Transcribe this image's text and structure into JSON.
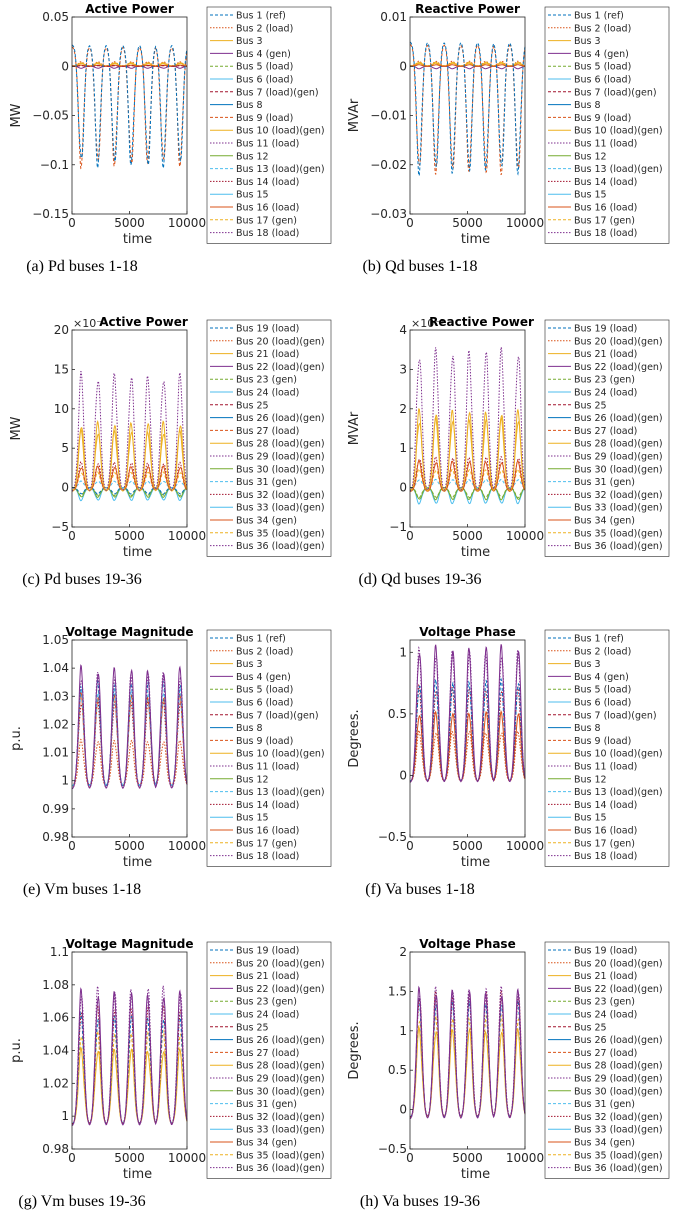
{
  "legend_sets": {
    "buses_1_18": [
      "Bus 1 (ref)",
      "Bus 2 (load)",
      "Bus 3",
      "Bus 4 (gen)",
      "Bus 5 (load)",
      "Bus 6 (load)",
      "Bus 7 (load)(gen)",
      "Bus 8",
      "Bus 9 (load)",
      "Bus 10 (load)(gen)",
      "Bus 11 (load)",
      "Bus 12",
      "Bus 13 (load)(gen)",
      "Bus 14 (load)",
      "Bus 15",
      "Bus 16 (load)",
      "Bus 17 (gen)",
      "Bus 18 (load)"
    ],
    "buses_19_36": [
      "Bus 19 (load)",
      "Bus 20 (load)(gen)",
      "Bus 21 (load)",
      "Bus 22 (load)(gen)",
      "Bus 23 (gen)",
      "Bus 24 (load)",
      "Bus 25",
      "Bus 26 (load)(gen)",
      "Bus 27 (load)",
      "Bus 28 (load)(gen)",
      "Bus 29 (load)(gen)",
      "Bus 30 (load)(gen)",
      "Bus 31 (gen)",
      "Bus 32 (load)(gen)",
      "Bus 33 (load)(gen)",
      "Bus 34 (gen)",
      "Bus 35 (load)(gen)",
      "Bus 36 (load)(gen)"
    ]
  },
  "line_styles": [
    {
      "color": "#0072BD",
      "dash": "3,2"
    },
    {
      "color": "#D95319",
      "dash": "1.5,1.5"
    },
    {
      "color": "#EDB120",
      "dash": ""
    },
    {
      "color": "#7E2F8E",
      "dash": ""
    },
    {
      "color": "#77AC30",
      "dash": "3,2"
    },
    {
      "color": "#4DBEEE",
      "dash": ""
    },
    {
      "color": "#A2142F",
      "dash": "3,2"
    },
    {
      "color": "#0072BD",
      "dash": ""
    },
    {
      "color": "#D95319",
      "dash": "3,2"
    },
    {
      "color": "#EDB120",
      "dash": ""
    },
    {
      "color": "#7E2F8E",
      "dash": "1.5,1.5"
    },
    {
      "color": "#77AC30",
      "dash": ""
    },
    {
      "color": "#4DBEEE",
      "dash": "3,2"
    },
    {
      "color": "#A2142F",
      "dash": "1.5,1.5"
    },
    {
      "color": "#4DBEEE",
      "dash": ""
    },
    {
      "color": "#D95319",
      "dash": ""
    },
    {
      "color": "#EDB120",
      "dash": "3,2"
    },
    {
      "color": "#7E2F8E",
      "dash": "1.5,1.5"
    }
  ],
  "chart_data": [
    {
      "id": "a",
      "type": "line",
      "title": "Active Power",
      "ylabel": "MW",
      "xlabel": "time",
      "caption": "(a) Pd buses 1-18",
      "xlim": [
        0,
        10000
      ],
      "xticks": [
        0,
        5000,
        10000
      ],
      "ylim": [
        -0.15,
        0.05
      ],
      "yticks": [
        -0.15,
        -0.1,
        -0.05,
        0,
        0.05
      ],
      "ytick_labels": [
        "−0.15",
        "−0.1",
        "−0.05",
        "0",
        "0.05"
      ],
      "exponent": "",
      "legend_set": "buses_1_18",
      "series": [
        {
          "style": 1,
          "amp": 0.004,
          "base": 0.0005,
          "phase": 0
        },
        {
          "style": 2,
          "amp": 0.0025,
          "base": 0.0002,
          "phase": 0
        },
        {
          "style": 3,
          "amp": -0.002,
          "base": 0,
          "phase": 0
        },
        {
          "style": 9,
          "amp": 0.003,
          "base": 0.0005,
          "phase": 0
        },
        {
          "style": 15,
          "amp": 0.001,
          "base": 0,
          "phase": 0
        },
        {
          "style": 6,
          "amp": 0.0005,
          "base": 0,
          "phase": 0
        },
        {
          "style": 8,
          "amp": -0.118,
          "base": 0.02,
          "phase": 0
        },
        {
          "style": 0,
          "amp": -0.12,
          "base": 0.022,
          "phase": 0
        }
      ]
    },
    {
      "id": "b",
      "type": "line",
      "title": "Reactive Power",
      "ylabel": "MVAr",
      "xlabel": "time",
      "caption": "(b) Qd buses 1-18",
      "xlim": [
        0,
        10000
      ],
      "xticks": [
        0,
        5000,
        10000
      ],
      "ylim": [
        -0.03,
        0.01
      ],
      "yticks": [
        -0.03,
        -0.02,
        -0.01,
        0,
        0.01
      ],
      "ytick_labels": [
        "−0.03",
        "−0.02",
        "−0.01",
        "0",
        "0.01"
      ],
      "exponent": "",
      "legend_set": "buses_1_18",
      "series": [
        {
          "style": 1,
          "amp": 0.0009,
          "base": 0.0001,
          "phase": 0
        },
        {
          "style": 2,
          "amp": 0.0006,
          "base": 0,
          "phase": 0
        },
        {
          "style": 3,
          "amp": -0.0005,
          "base": 0,
          "phase": 0
        },
        {
          "style": 9,
          "amp": 0.0007,
          "base": 0.0001,
          "phase": 0
        },
        {
          "style": 15,
          "amp": 0.0003,
          "base": 0,
          "phase": 0
        },
        {
          "style": 8,
          "amp": -0.0255,
          "base": 0.0045,
          "phase": 0
        },
        {
          "style": 0,
          "amp": -0.026,
          "base": 0.005,
          "phase": 0
        }
      ]
    },
    {
      "id": "c",
      "type": "line",
      "title": "Active Power",
      "ylabel": "MW",
      "xlabel": "time",
      "caption": "(c) Pd buses 19-36",
      "xlim": [
        0,
        10000
      ],
      "xticks": [
        0,
        5000,
        10000
      ],
      "ylim": [
        -5,
        20
      ],
      "yticks": [
        -5,
        0,
        5,
        10,
        15,
        20
      ],
      "ytick_labels": [
        "−5",
        "0",
        "5",
        "10",
        "15",
        "20"
      ],
      "exponent": "×10⁻³",
      "legend_set": "buses_19_36",
      "series": [
        {
          "style": 5,
          "amp": -1.6,
          "base": 0,
          "phase": 0
        },
        {
          "style": 11,
          "amp": -1.2,
          "base": 0,
          "phase": 0
        },
        {
          "style": 4,
          "amp": -1.0,
          "base": 0,
          "phase": 0
        },
        {
          "style": 0,
          "amp": -0.8,
          "base": 0,
          "phase": 0
        },
        {
          "style": 12,
          "amp": 0.8,
          "base": 0,
          "phase": 0
        },
        {
          "style": 16,
          "amp": 2.2,
          "base": -0.3,
          "phase": 0
        },
        {
          "style": 13,
          "amp": 3.5,
          "base": -0.4,
          "phase": 0
        },
        {
          "style": 15,
          "amp": 3.0,
          "base": -0.4,
          "phase": 0
        },
        {
          "style": 2,
          "amp": 7.5,
          "base": -0.5,
          "phase": 0
        },
        {
          "style": 9,
          "amp": 8.5,
          "base": -0.5,
          "phase": 0
        },
        {
          "style": 17,
          "amp": 14.5,
          "base": -0.5,
          "phase": 0
        }
      ]
    },
    {
      "id": "d",
      "type": "line",
      "title": "Reactive Power",
      "ylabel": "MVAr",
      "xlabel": "time",
      "caption": "(d) Qd buses 19-36",
      "xlim": [
        0,
        10000
      ],
      "xticks": [
        0,
        5000,
        10000
      ],
      "ylim": [
        -1,
        4
      ],
      "yticks": [
        -1,
        0,
        1,
        2,
        3,
        4
      ],
      "ytick_labels": [
        "−1",
        "0",
        "1",
        "2",
        "3",
        "4"
      ],
      "exponent": "×10⁻³",
      "legend_set": "buses_19_36",
      "series": [
        {
          "style": 5,
          "amp": -0.4,
          "base": 0,
          "phase": 0
        },
        {
          "style": 11,
          "amp": -0.3,
          "base": 0,
          "phase": 0
        },
        {
          "style": 4,
          "amp": -0.25,
          "base": 0,
          "phase": 0
        },
        {
          "style": 12,
          "amp": 0.2,
          "base": 0,
          "phase": 0
        },
        {
          "style": 16,
          "amp": 0.5,
          "base": -0.05,
          "phase": 0
        },
        {
          "style": 13,
          "amp": 0.85,
          "base": -0.1,
          "phase": 0
        },
        {
          "style": 15,
          "amp": 0.75,
          "base": -0.1,
          "phase": 0
        },
        {
          "style": 2,
          "amp": 1.8,
          "base": -0.1,
          "phase": 0
        },
        {
          "style": 9,
          "amp": 2.0,
          "base": -0.1,
          "phase": 0
        },
        {
          "style": 17,
          "amp": 3.5,
          "base": -0.1,
          "phase": 0
        }
      ]
    },
    {
      "id": "e",
      "type": "line",
      "title": "Voltage Magnitude",
      "ylabel": "p.u.",
      "xlabel": "time",
      "caption": "(e) Vm buses 1-18",
      "xlim": [
        0,
        10000
      ],
      "xticks": [
        0,
        5000,
        10000
      ],
      "ylim": [
        0.98,
        1.05
      ],
      "yticks": [
        0.98,
        0.99,
        1,
        1.01,
        1.02,
        1.03,
        1.04,
        1.05
      ],
      "ytick_labels": [
        "0.98",
        "0.99",
        "1",
        "1.01",
        "1.02",
        "1.03",
        "1.04",
        "1.05"
      ],
      "exponent": "",
      "legend_set": "buses_1_18",
      "series": [
        {
          "style": 1,
          "amp": 0.016,
          "base": 0.998,
          "phase": 0
        },
        {
          "style": 13,
          "amp": 0.03,
          "base": 0.998,
          "phase": 0
        },
        {
          "style": 15,
          "amp": 0.032,
          "base": 0.998,
          "phase": 0
        },
        {
          "style": 0,
          "amp": 0.036,
          "base": 0.998,
          "phase": 0
        },
        {
          "style": 12,
          "amp": 0.034,
          "base": 0.998,
          "phase": 0
        },
        {
          "style": 17,
          "amp": 0.04,
          "base": 0.997,
          "phase": 0
        },
        {
          "style": 3,
          "amp": 0.042,
          "base": 0.997,
          "phase": 0
        }
      ]
    },
    {
      "id": "f",
      "type": "line",
      "title": "Voltage Phase",
      "ylabel": "Degrees.",
      "xlabel": "time",
      "caption": "(f) Va buses 1-18",
      "xlim": [
        0,
        10000
      ],
      "xticks": [
        0,
        5000,
        10000
      ],
      "ylim": [
        -0.5,
        1.1
      ],
      "yticks": [
        -0.5,
        0,
        0.5,
        1
      ],
      "ytick_labels": [
        "−0.5",
        "0",
        "0.5",
        "1"
      ],
      "exponent": "",
      "legend_set": "buses_1_18",
      "series": [
        {
          "style": 1,
          "amp": 0.4,
          "base": -0.05,
          "phase": 0
        },
        {
          "style": 15,
          "amp": 0.55,
          "base": -0.05,
          "phase": 0
        },
        {
          "style": 13,
          "amp": 0.75,
          "base": -0.05,
          "phase": 0
        },
        {
          "style": 0,
          "amp": 0.8,
          "base": -0.05,
          "phase": 0
        },
        {
          "style": 17,
          "amp": 1.05,
          "base": -0.06,
          "phase": 0
        },
        {
          "style": 3,
          "amp": 1.08,
          "base": -0.06,
          "phase": 0
        }
      ]
    },
    {
      "id": "g",
      "type": "line",
      "title": "Voltage Magnitude",
      "ylabel": "p.u.",
      "xlabel": "time",
      "caption": "(g) Vm buses 19-36",
      "xlim": [
        0,
        10000
      ],
      "xticks": [
        0,
        5000,
        10000
      ],
      "ylim": [
        0.98,
        1.1
      ],
      "yticks": [
        0.98,
        1,
        1.02,
        1.04,
        1.06,
        1.08,
        1.1
      ],
      "ytick_labels": [
        "0.98",
        "1",
        "1.02",
        "1.04",
        "1.06",
        "1.08",
        "1.1"
      ],
      "exponent": "",
      "legend_set": "buses_19_36",
      "series": [
        {
          "style": 2,
          "amp": 0.045,
          "base": 0.995,
          "phase": 0
        },
        {
          "style": 16,
          "amp": 0.055,
          "base": 0.995,
          "phase": 0
        },
        {
          "style": 0,
          "amp": 0.065,
          "base": 0.995,
          "phase": 0
        },
        {
          "style": 13,
          "amp": 0.07,
          "base": 0.995,
          "phase": 0
        },
        {
          "style": 3,
          "amp": 0.08,
          "base": 0.994,
          "phase": 0
        },
        {
          "style": 17,
          "amp": 0.082,
          "base": 0.994,
          "phase": 0
        }
      ]
    },
    {
      "id": "h",
      "type": "line",
      "title": "Voltage Phase",
      "ylabel": "Degrees.",
      "xlabel": "time",
      "caption": "(h) Va buses 19-36",
      "xlim": [
        0,
        10000
      ],
      "xticks": [
        0,
        5000,
        10000
      ],
      "ylim": [
        -0.5,
        2
      ],
      "yticks": [
        -0.5,
        0,
        0.5,
        1,
        1.5,
        2
      ],
      "ytick_labels": [
        "−0.5",
        "0",
        "0.5",
        "1",
        "1.5",
        "2"
      ],
      "exponent": "",
      "legend_set": "buses_19_36",
      "series": [
        {
          "style": 2,
          "amp": 1.1,
          "base": -0.1,
          "phase": 0
        },
        {
          "style": 16,
          "amp": 1.25,
          "base": -0.1,
          "phase": 0
        },
        {
          "style": 0,
          "amp": 1.45,
          "base": -0.1,
          "phase": 0
        },
        {
          "style": 13,
          "amp": 1.55,
          "base": -0.1,
          "phase": 0
        },
        {
          "style": 3,
          "amp": 1.6,
          "base": -0.12,
          "phase": 0
        },
        {
          "style": 17,
          "amp": 1.62,
          "base": -0.12,
          "phase": 0
        }
      ]
    }
  ]
}
